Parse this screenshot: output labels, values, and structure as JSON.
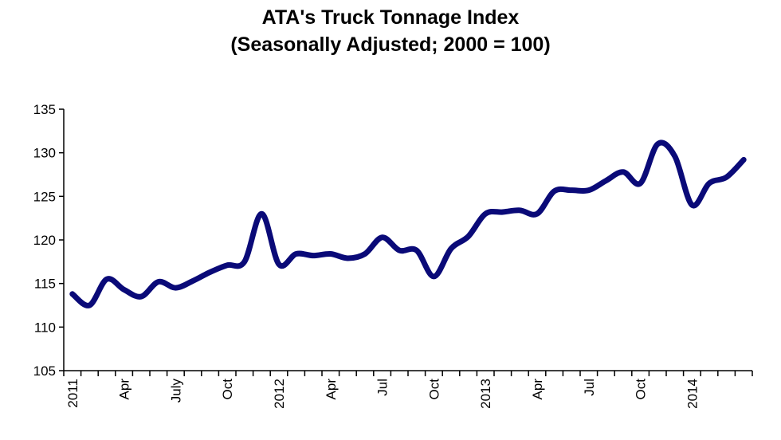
{
  "chart_data": {
    "type": "line",
    "title": "ATA's  Truck Tonnage Index",
    "subtitle": "(Seasonally Adjusted; 2000 = 100)",
    "xlabel": "",
    "ylabel": "",
    "ylim": [
      105,
      135
    ],
    "yticks": [
      105,
      110,
      115,
      120,
      125,
      130,
      135
    ],
    "grid": false,
    "line_color": "#0a0a78",
    "x": [
      "2011-01",
      "2011-02",
      "2011-03",
      "2011-04",
      "2011-05",
      "2011-06",
      "2011-07",
      "2011-08",
      "2011-09",
      "2011-10",
      "2011-11",
      "2011-12",
      "2012-01",
      "2012-02",
      "2012-03",
      "2012-04",
      "2012-05",
      "2012-06",
      "2012-07",
      "2012-08",
      "2012-09",
      "2012-10",
      "2012-11",
      "2012-12",
      "2013-01",
      "2013-02",
      "2013-03",
      "2013-04",
      "2013-05",
      "2013-06",
      "2013-07",
      "2013-08",
      "2013-09",
      "2013-10",
      "2013-11",
      "2013-12",
      "2014-01",
      "2014-02",
      "2014-03",
      "2014-04"
    ],
    "values": [
      113.8,
      112.5,
      115.5,
      114.3,
      113.5,
      115.2,
      114.5,
      115.3,
      116.3,
      117.1,
      117.5,
      123.0,
      117.2,
      118.4,
      118.2,
      118.4,
      117.9,
      118.4,
      120.3,
      118.8,
      118.8,
      115.8,
      119.0,
      120.4,
      123.0,
      123.2,
      123.4,
      123.0,
      125.6,
      125.7,
      125.7,
      126.8,
      127.8,
      126.5,
      131.0,
      129.6,
      124.0,
      126.5,
      127.2,
      129.2
    ],
    "xtick_labels": [
      {
        "index": 0,
        "label": "2011"
      },
      {
        "index": 3,
        "label": "Apr"
      },
      {
        "index": 6,
        "label": "July"
      },
      {
        "index": 9,
        "label": "Oct"
      },
      {
        "index": 12,
        "label": "2012"
      },
      {
        "index": 15,
        "label": "Apr"
      },
      {
        "index": 18,
        "label": "Jul"
      },
      {
        "index": 21,
        "label": "Oct"
      },
      {
        "index": 24,
        "label": "2013"
      },
      {
        "index": 27,
        "label": "Apr"
      },
      {
        "index": 30,
        "label": "Jul"
      },
      {
        "index": 33,
        "label": "Oct"
      },
      {
        "index": 36,
        "label": "2014"
      }
    ]
  }
}
